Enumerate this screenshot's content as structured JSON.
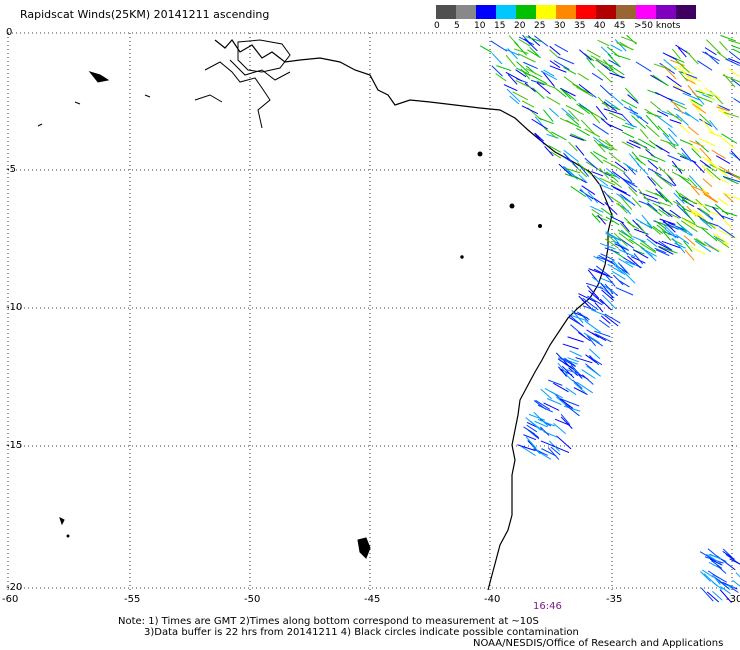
{
  "title": "Rapidscat Winds(25KM) 20141211 ascending",
  "colorscale": {
    "colors": [
      "#505050",
      "#888888",
      "#0000ff",
      "#00c8ff",
      "#00c000",
      "#ffff00",
      "#ff8800",
      "#ff0000",
      "#b20000",
      "#996633",
      "#ff00ff",
      "#8000c0",
      "#400060"
    ],
    "labels": [
      "0",
      "5",
      "10",
      "15",
      "20",
      "25",
      "30",
      "35",
      "40",
      "45",
      ">50 knots"
    ]
  },
  "axes": {
    "lon_ticks": [
      "-60",
      "-55",
      "-50",
      "-45",
      "-40",
      "-35",
      "-30"
    ],
    "lat_ticks": [
      "0",
      "-5",
      "-10",
      "-15",
      "-20"
    ]
  },
  "pass_time": "16:46",
  "notes": [
    "Note: 1) Times are GMT 2)Times along bottom correspond to measurement at ~10S",
    "3)Data buffer is 22 hrs from 20141211 4) Black circles indicate possible contamination",
    "NOAA/NESDIS/Office of Research and Applications"
  ]
}
